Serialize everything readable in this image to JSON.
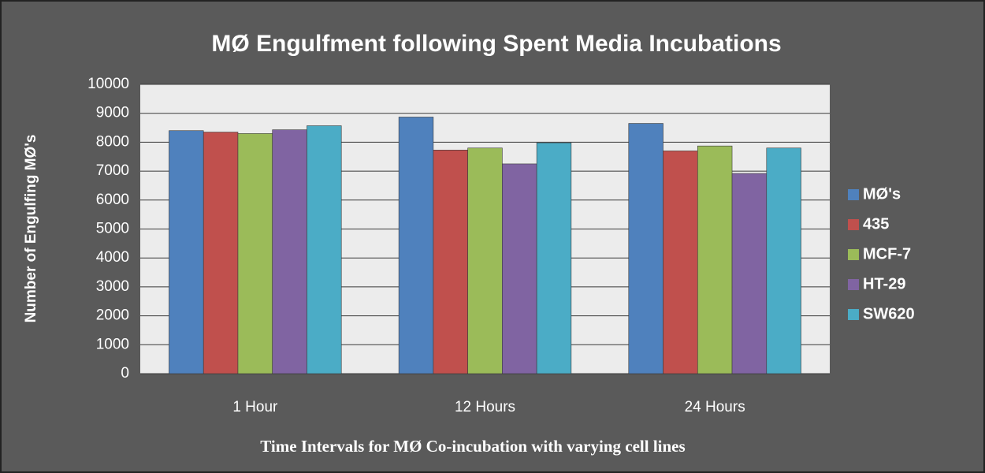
{
  "chart_data": {
    "type": "bar",
    "title": "MØ Engulfment following Spent Media Incubations",
    "x_label": "Time Intervals for MØ Co-incubation with varying cell lines",
    "y_label": "Number of  Engulfing MØ's",
    "categories": [
      "1 Hour",
      "12 Hours",
      "24 Hours"
    ],
    "series": [
      {
        "name": "MØ's",
        "color": "#4f81bd",
        "values": [
          8400,
          8870,
          8650
        ]
      },
      {
        "name": "435",
        "color": "#c0504d",
        "values": [
          8350,
          7730,
          7700
        ]
      },
      {
        "name": "MCF-7",
        "color": "#9bbb59",
        "values": [
          8300,
          7800,
          7870
        ]
      },
      {
        "name": "HT-29",
        "color": "#8064a2",
        "values": [
          8430,
          7250,
          6920
        ]
      },
      {
        "name": "SW620",
        "color": "#4bacc6",
        "values": [
          8570,
          7980,
          7800
        ]
      }
    ],
    "ylim": [
      0,
      10000
    ],
    "yticks": [
      0,
      1000,
      2000,
      3000,
      4000,
      5000,
      6000,
      7000,
      8000,
      9000,
      10000
    ],
    "grid": true,
    "legend": "right"
  }
}
